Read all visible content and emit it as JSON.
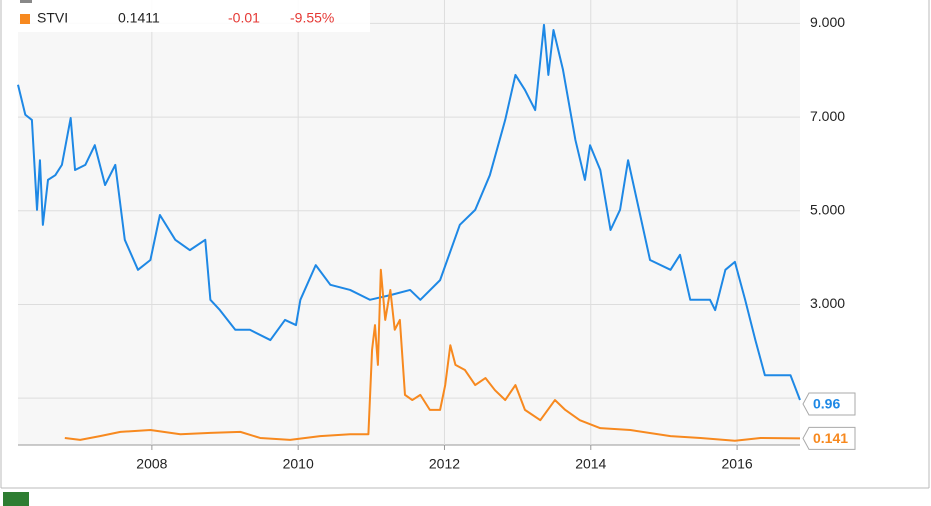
{
  "chart_data": {
    "type": "line",
    "xlim": [
      2006.17,
      2016.86
    ],
    "xticks": [
      2008,
      2010,
      2012,
      2014,
      2016
    ],
    "ylim": [
      0,
      9.5
    ],
    "yticks": [
      {
        "value": 1,
        "label": null
      },
      {
        "value": 3,
        "label": "3.000"
      },
      {
        "value": 5,
        "label": "5.000"
      },
      {
        "value": 7,
        "label": "7.000"
      },
      {
        "value": 9,
        "label": "9.000"
      }
    ],
    "grid": true,
    "y_axis_side": "right",
    "series": [
      {
        "color": "#1e88e5",
        "last_label": "0.96",
        "x": [
          2006.17,
          2006.27,
          2006.36,
          2006.43,
          2006.47,
          2006.51,
          2006.58,
          2006.68,
          2006.77,
          2006.89,
          2006.95,
          2007.09,
          2007.22,
          2007.36,
          2007.5,
          2007.63,
          2007.81,
          2007.98,
          2008.11,
          2008.32,
          2008.52,
          2008.73,
          2008.8,
          2008.93,
          2009.14,
          2009.34,
          2009.62,
          2009.82,
          2009.97,
          2010.03,
          2010.24,
          2010.44,
          2010.71,
          2010.98,
          2011.26,
          2011.53,
          2011.67,
          2011.94,
          2012.21,
          2012.42,
          2012.62,
          2012.83,
          2012.97,
          2013.1,
          2013.24,
          2013.36,
          2013.42,
          2013.49,
          2013.62,
          2013.79,
          2013.92,
          2013.99,
          2014.13,
          2014.27,
          2014.4,
          2014.51,
          2014.63,
          2014.81,
          2015.09,
          2015.22,
          2015.36,
          2015.63,
          2015.7,
          2015.84,
          2015.97,
          2016.11,
          2016.25,
          2016.38,
          2016.59,
          2016.73,
          2016.86
        ],
        "values": [
          7.69,
          7.05,
          6.94,
          5.02,
          6.08,
          4.7,
          5.66,
          5.76,
          5.98,
          6.98,
          5.87,
          5.98,
          6.4,
          5.55,
          5.98,
          4.38,
          3.74,
          3.95,
          4.91,
          4.38,
          4.16,
          4.38,
          3.1,
          2.88,
          2.46,
          2.46,
          2.24,
          2.67,
          2.56,
          3.1,
          3.84,
          3.42,
          3.31,
          3.1,
          3.2,
          3.31,
          3.1,
          3.52,
          4.7,
          5.02,
          5.76,
          6.94,
          7.9,
          7.58,
          7.15,
          8.97,
          7.9,
          8.86,
          8.01,
          6.51,
          5.66,
          6.4,
          5.87,
          4.59,
          5.02,
          6.08,
          5.23,
          3.95,
          3.74,
          4.06,
          3.1,
          3.1,
          2.88,
          3.74,
          3.91,
          3.1,
          2.24,
          1.49,
          1.49,
          1.49,
          0.96
        ]
      },
      {
        "name": "STVI",
        "color": "#f7891f",
        "last_label": "0.141",
        "legend_values": [
          "0.1411",
          "-0.01",
          "-9.55%"
        ],
        "x": [
          2006.81,
          2007.02,
          2007.29,
          2007.57,
          2007.98,
          2008.39,
          2008.8,
          2009.21,
          2009.48,
          2009.89,
          2010.3,
          2010.71,
          2010.96,
          2011.01,
          2011.05,
          2011.09,
          2011.13,
          2011.19,
          2011.26,
          2011.32,
          2011.39,
          2011.46,
          2011.56,
          2011.67,
          2011.8,
          2011.94,
          2012.01,
          2012.08,
          2012.15,
          2012.28,
          2012.42,
          2012.56,
          2012.69,
          2012.83,
          2012.97,
          2013.1,
          2013.31,
          2013.51,
          2013.65,
          2013.85,
          2014.13,
          2014.54,
          2015.09,
          2015.5,
          2015.97,
          2016.32,
          2016.86
        ],
        "values": [
          0.15,
          0.11,
          0.19,
          0.28,
          0.32,
          0.23,
          0.26,
          0.28,
          0.15,
          0.11,
          0.19,
          0.23,
          0.23,
          2.03,
          2.56,
          1.71,
          3.74,
          2.67,
          3.31,
          2.46,
          2.67,
          1.07,
          0.96,
          1.07,
          0.75,
          0.75,
          1.28,
          2.13,
          1.71,
          1.6,
          1.28,
          1.43,
          1.17,
          0.96,
          1.28,
          0.75,
          0.53,
          0.96,
          0.75,
          0.53,
          0.36,
          0.32,
          0.19,
          0.15,
          0.09,
          0.15,
          0.1411
        ]
      }
    ]
  }
}
